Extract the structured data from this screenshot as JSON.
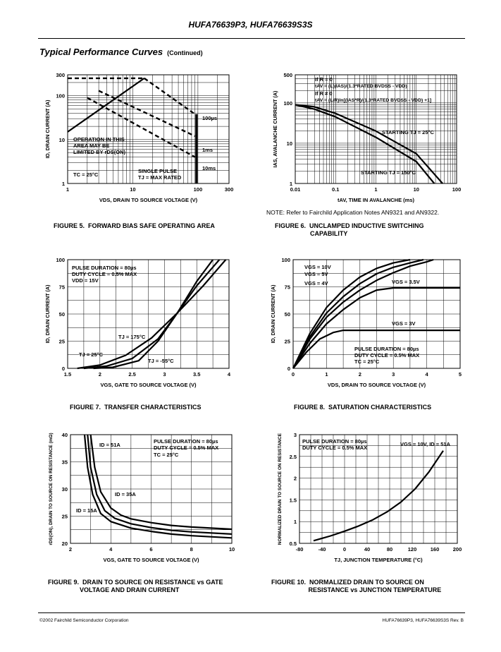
{
  "header": {
    "title": "HUFA76639P3, HUFA76639S3S"
  },
  "section": {
    "title": "Typical Performance Curves",
    "continued": "(Continued)"
  },
  "footer": {
    "left": "©2002 Fairchild Semiconductor Corporation",
    "right": "HUFA76639P3, HUFA76639S3S Rev. B"
  },
  "note": "NOTE:  Refer to Fairchild Application Notes AN9321 and AN9322.",
  "figures": {
    "f5": "FIGURE 5.  FORWARD BIAS SAFE OPERATING AREA",
    "f6": "FIGURE 6.  UNCLAMPED INDUCTIVE SWITCHING\n                    CAPABILITY",
    "f7": "FIGURE 7.  TRANSFER CHARACTERISTICS",
    "f8": "FIGURE 8.  SATURATION CHARACTERISTICS",
    "f9": "FIGURE 9.  DRAIN TO SOURCE ON RESISTANCE vs GATE\n                  VOLTAGE AND DRAIN CURRENT",
    "f10": "FIGURE 10.  NORMALIZED DRAIN TO SOURCE ON\n                     RESISTANCE vs JUNCTION TEMPERATURE"
  },
  "chart_data": [
    {
      "id": "fig5",
      "type": "line",
      "xscale": "log",
      "yscale": "log",
      "xlim": [
        1,
        300
      ],
      "ylim": [
        1,
        300
      ],
      "xticks": [
        1,
        10,
        100,
        300
      ],
      "yticks": [
        1,
        10,
        100,
        300
      ],
      "xlabel": "VDS, DRAIN TO SOURCE VOLTAGE (V)",
      "ylabel": "ID, DRAIN CURRENT (A)",
      "grid": true,
      "series": [
        {
          "name": "",
          "style": "solid",
          "x": [
            1,
            15
          ],
          "y": [
            15,
            250
          ]
        },
        {
          "name": "",
          "style": "dashed",
          "x": [
            1,
            15
          ],
          "y": [
            250,
            250
          ]
        },
        {
          "name": "100µs",
          "style": "dashed",
          "x": [
            15,
            90
          ],
          "y": [
            250,
            38
          ]
        },
        {
          "name": "1ms",
          "style": "dashed",
          "x": [
            3,
            90
          ],
          "y": [
            130,
            12
          ]
        },
        {
          "name": "10ms",
          "style": "dashed",
          "x": [
            2,
            90
          ],
          "y": [
            90,
            4
          ]
        },
        {
          "name": "",
          "style": "thick",
          "x": [
            95,
            95
          ],
          "y": [
            1,
            38
          ]
        }
      ],
      "annotations": [
        "OPERATION IN THIS",
        "AREA MAY BE",
        "LIMITED BY rDS(ON)",
        "TC = 25°C",
        "SINGLE PULSE",
        "TJ = MAX RATED",
        "100µs",
        "1ms",
        "10ms"
      ]
    },
    {
      "id": "fig6",
      "type": "line",
      "xscale": "log",
      "yscale": "log",
      "xlim": [
        0.01,
        100
      ],
      "ylim": [
        1,
        500
      ],
      "xticks": [
        0.01,
        0.1,
        1,
        10,
        100
      ],
      "yticks": [
        1,
        10,
        100,
        500
      ],
      "xlabel": "tAV, TIME IN AVALANCHE (ms)",
      "ylabel": "IAS, AVALANCHE CURRENT (A)",
      "grid": true,
      "series": [
        {
          "name": "STARTING TJ = 25°C",
          "x": [
            0.01,
            0.03,
            0.1,
            1,
            10,
            45
          ],
          "y": [
            90,
            80,
            55,
            20,
            5.5,
            1
          ]
        },
        {
          "name": "STARTING TJ = 150°C",
          "x": [
            0.01,
            0.03,
            0.1,
            1,
            10,
            28
          ],
          "y": [
            90,
            70,
            45,
            14,
            3.5,
            1
          ]
        }
      ],
      "annotations": [
        "If R = 0",
        "tAV = (L)(IAS)/(1.3*RATED BVDSS - VDD)",
        "If R ≠ 0",
        "tAV = (L/R)ln[(IAS*R)/(1.3*RATED BVDSS - VDD) +1]",
        "STARTING TJ = 25°C",
        "STARTING TJ = 150°C"
      ]
    },
    {
      "id": "fig7",
      "type": "line",
      "xlim": [
        1.5,
        4.0
      ],
      "ylim": [
        0,
        100
      ],
      "xticks": [
        1.5,
        2.0,
        2.5,
        3.0,
        3.5,
        4.0
      ],
      "yticks": [
        0,
        25,
        50,
        75,
        100
      ],
      "xlabel": "VGS, GATE TO SOURCE VOLTAGE (V)",
      "ylabel": "ID, DRAIN CURRENT (A)",
      "grid": true,
      "series": [
        {
          "name": "TJ = 175°C",
          "x": [
            1.65,
            2.0,
            2.4,
            2.8,
            3.2,
            3.6,
            3.95
          ],
          "y": [
            0,
            3,
            12,
            28,
            51,
            76,
            100
          ]
        },
        {
          "name": "TJ = 25°C",
          "x": [
            1.75,
            2.1,
            2.5,
            2.9,
            3.2,
            3.5,
            3.85
          ],
          "y": [
            0,
            2,
            9,
            27,
            51,
            76,
            100
          ]
        },
        {
          "name": "TJ = -55°C",
          "x": [
            1.9,
            2.2,
            2.6,
            2.9,
            3.2,
            3.5,
            3.75
          ],
          "y": [
            0,
            1,
            7,
            25,
            51,
            80,
            100
          ]
        }
      ],
      "annotations": [
        "PULSE DURATION = 80µs",
        "DUTY CYCLE = 0.5% MAX",
        "VDD = 15V",
        "TJ = 175°C",
        "TJ = 25°C",
        "TJ = -55°C"
      ]
    },
    {
      "id": "fig8",
      "type": "line",
      "xlim": [
        0,
        5
      ],
      "ylim": [
        0,
        100
      ],
      "xticks": [
        0,
        1,
        2,
        3,
        4,
        5
      ],
      "yticks": [
        0,
        25,
        50,
        75,
        100
      ],
      "xlabel": "VDS, DRAIN TO SOURCE VOLTAGE (V)",
      "ylabel": "ID, DRAIN CURRENT (A)",
      "grid": true,
      "series": [
        {
          "name": "VGS = 10V",
          "x": [
            0,
            0.5,
            1,
            1.5,
            2,
            2.5,
            3,
            3.5
          ],
          "y": [
            0,
            32,
            56,
            72,
            84,
            92,
            97,
            100
          ]
        },
        {
          "name": "VGS = 5V",
          "x": [
            0,
            0.5,
            1,
            1.5,
            2,
            2.5,
            3,
            3.5,
            3.9
          ],
          "y": [
            0,
            29,
            51,
            66,
            78,
            87,
            93,
            97,
            100
          ]
        },
        {
          "name": "VGS = 4V",
          "x": [
            0,
            0.5,
            1,
            1.5,
            2,
            2.5,
            3,
            3.5,
            4,
            4.2
          ],
          "y": [
            0,
            27,
            47,
            61,
            72,
            81,
            88,
            94,
            98,
            100
          ]
        },
        {
          "name": "VGS = 3.5V",
          "x": [
            0,
            0.5,
            1,
            1.5,
            2,
            2.5,
            3,
            5
          ],
          "y": [
            0,
            23,
            41,
            54,
            65,
            72,
            74,
            74
          ]
        },
        {
          "name": "VGS = 3V",
          "x": [
            0,
            0.4,
            0.8,
            1.2,
            1.5,
            5
          ],
          "y": [
            0,
            15,
            27,
            33,
            35,
            35
          ]
        }
      ],
      "annotations": [
        "VGS = 10V",
        "VGS = 5V",
        "VGS = 4V",
        "VGS = 3.5V",
        "VGS = 3V",
        "PULSE DURATION = 80µs",
        "DUTY CYCLE = 0.5% MAX",
        "TC = 25°C"
      ]
    },
    {
      "id": "fig9",
      "type": "line",
      "xlim": [
        2,
        10
      ],
      "ylim": [
        20,
        40
      ],
      "xticks": [
        2,
        4,
        6,
        8,
        10
      ],
      "yticks": [
        20,
        25,
        30,
        35,
        40
      ],
      "xlabel": "VGS, GATE TO SOURCE VOLTAGE (V)",
      "ylabel": "rDS(ON), DRAIN TO SOURCE ON RESISTANCE (mΩ)",
      "grid": true,
      "series": [
        {
          "name": "ID = 51A",
          "x": [
            3.0,
            3.2,
            3.5,
            4.0,
            4.5,
            5,
            6,
            7,
            8,
            10
          ],
          "y": [
            40,
            34,
            29.5,
            26.5,
            25.2,
            24.5,
            23.8,
            23.3,
            23,
            22.6
          ]
        },
        {
          "name": "ID = 35A",
          "x": [
            2.85,
            3.0,
            3.3,
            3.7,
            4.2,
            5,
            6,
            7,
            8,
            10
          ],
          "y": [
            40,
            34,
            29,
            26,
            24.6,
            23.6,
            22.9,
            22.4,
            22.1,
            21.7
          ]
        },
        {
          "name": "ID = 15A",
          "x": [
            2.7,
            2.85,
            3.1,
            3.5,
            4.0,
            5,
            6,
            7,
            8,
            10
          ],
          "y": [
            40,
            34,
            29,
            25.5,
            24,
            22.8,
            22.2,
            21.7,
            21.4,
            21.0
          ]
        }
      ],
      "annotations": [
        "ID = 51A",
        "ID = 35A",
        "ID = 15A",
        "PULSE DURATION = 80µs",
        "DUTY CYCLE = 0.5% MAX",
        "TC = 25°C"
      ]
    },
    {
      "id": "fig10",
      "type": "line",
      "xlim": [
        -80,
        200
      ],
      "ylim": [
        0.5,
        3.0
      ],
      "xticks": [
        -80,
        -40,
        0,
        40,
        80,
        120,
        160,
        200
      ],
      "yticks": [
        0.5,
        1.0,
        1.5,
        2.0,
        2.5,
        3.0
      ],
      "xlabel": "TJ, JUNCTION TEMPERATURE (°C)",
      "ylabel": "NORMALIZED DRAIN TO SOURCE ON RESISTANCE",
      "grid": true,
      "series": [
        {
          "name": "VGS = 10V, ID = 51A",
          "x": [
            -55,
            -25,
            0,
            25,
            50,
            75,
            100,
            125,
            150,
            175
          ],
          "y": [
            0.56,
            0.67,
            0.78,
            0.9,
            1.04,
            1.22,
            1.45,
            1.75,
            2.15,
            2.63
          ]
        }
      ],
      "annotations": [
        "PULSE DURATION = 80µs",
        "DUTY CYCLE = 0.5% MAX",
        "VGS = 10V, ID = 51A"
      ]
    }
  ]
}
